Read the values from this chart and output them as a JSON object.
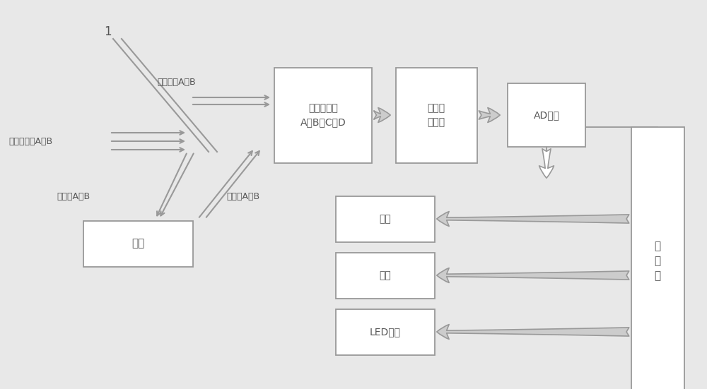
{
  "bg_color": "#e8e8e8",
  "box_fc": "#ffffff",
  "box_ec": "#999999",
  "text_color": "#555555",
  "line_color": "#999999",
  "arrow_fc": "#cccccc",
  "arrow_ec": "#999999",
  "label_1": "1",
  "label_led_diode": "发光二极管A、B",
  "label_ref": "参考光源A、B",
  "label_incident": "入射光A、B",
  "label_reflect": "反射光A、B",
  "label_pd": "光电探测器\nA、B、C、D",
  "label_amp": "放大滤\n波电路",
  "label_ad": "AD转换",
  "label_mcu": "单\n片\n机",
  "label_storage": "存储",
  "label_serial": "串口",
  "label_led_disp": "LED显示",
  "label_chaye": "茶叶"
}
